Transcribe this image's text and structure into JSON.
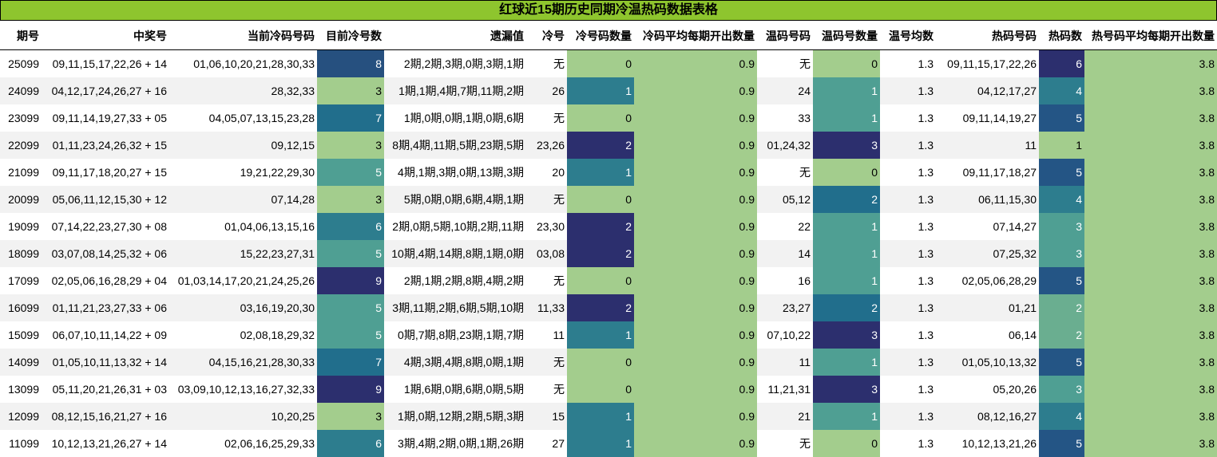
{
  "title": "红球近15期历史同期冷温热码数据表格",
  "headers": [
    "期号",
    "中奖号",
    "当前冷码号码",
    "目前冷号数",
    "遗漏值",
    "冷号",
    "冷号码数量",
    "冷码平均每期开出数量",
    "温码号码",
    "温码号数量",
    "温号均数",
    "热码号码",
    "热码数",
    "热号码平均每期开出数量"
  ],
  "colors": {
    "c1": "#a3cd8d",
    "c2": "#6aae90",
    "c3": "#4f9f93",
    "c4": "#2d7d8e",
    "c5": "#216e8c",
    "c6": "#245585",
    "c7": "#1f6287",
    "c8": "#26507f",
    "c9": "#2c2f6e",
    "zero": "#a3cd8d"
  },
  "rows": [
    {
      "period": "25099",
      "win": "09,11,15,17,22,26 + 14",
      "cold_nums": "01,06,10,20,21,28,30,33",
      "cold_count": "8",
      "omit": "2期,2期,3期,0期,3期,1期",
      "cold": "无",
      "cold_qty": "0",
      "cold_avg": "0.9",
      "warm_nums": "无",
      "warm_qty": "0",
      "warm_avg": "1.3",
      "hot_nums": "09,11,15,17,22,26",
      "hot_qty": "6",
      "hot_avg": "3.8"
    },
    {
      "period": "24099",
      "win": "04,12,17,24,26,27 + 16",
      "cold_nums": "28,32,33",
      "cold_count": "3",
      "omit": "1期,1期,4期,7期,11期,2期",
      "cold": "26",
      "cold_qty": "1",
      "cold_avg": "0.9",
      "warm_nums": "24",
      "warm_qty": "1",
      "warm_avg": "1.3",
      "hot_nums": "04,12,17,27",
      "hot_qty": "4",
      "hot_avg": "3.8"
    },
    {
      "period": "23099",
      "win": "09,11,14,19,27,33 + 05",
      "cold_nums": "04,05,07,13,15,23,28",
      "cold_count": "7",
      "omit": "1期,0期,0期,1期,0期,6期",
      "cold": "无",
      "cold_qty": "0",
      "cold_avg": "0.9",
      "warm_nums": "33",
      "warm_qty": "1",
      "warm_avg": "1.3",
      "hot_nums": "09,11,14,19,27",
      "hot_qty": "5",
      "hot_avg": "3.8"
    },
    {
      "period": "22099",
      "win": "01,11,23,24,26,32 + 15",
      "cold_nums": "09,12,15",
      "cold_count": "3",
      "omit": "8期,4期,11期,5期,23期,5期",
      "cold": "23,26",
      "cold_qty": "2",
      "cold_avg": "0.9",
      "warm_nums": "01,24,32",
      "warm_qty": "3",
      "warm_avg": "1.3",
      "hot_nums": "11",
      "hot_qty": "1",
      "hot_avg": "3.8"
    },
    {
      "period": "21099",
      "win": "09,11,17,18,20,27 + 15",
      "cold_nums": "19,21,22,29,30",
      "cold_count": "5",
      "omit": "4期,1期,3期,0期,13期,3期",
      "cold": "20",
      "cold_qty": "1",
      "cold_avg": "0.9",
      "warm_nums": "无",
      "warm_qty": "0",
      "warm_avg": "1.3",
      "hot_nums": "09,11,17,18,27",
      "hot_qty": "5",
      "hot_avg": "3.8"
    },
    {
      "period": "20099",
      "win": "05,06,11,12,15,30 + 12",
      "cold_nums": "07,14,28",
      "cold_count": "3",
      "omit": "5期,0期,0期,6期,4期,1期",
      "cold": "无",
      "cold_qty": "0",
      "cold_avg": "0.9",
      "warm_nums": "05,12",
      "warm_qty": "2",
      "warm_avg": "1.3",
      "hot_nums": "06,11,15,30",
      "hot_qty": "4",
      "hot_avg": "3.8"
    },
    {
      "period": "19099",
      "win": "07,14,22,23,27,30 + 08",
      "cold_nums": "01,04,06,13,15,16",
      "cold_count": "6",
      "omit": "2期,0期,5期,10期,2期,11期",
      "cold": "23,30",
      "cold_qty": "2",
      "cold_avg": "0.9",
      "warm_nums": "22",
      "warm_qty": "1",
      "warm_avg": "1.3",
      "hot_nums": "07,14,27",
      "hot_qty": "3",
      "hot_avg": "3.8"
    },
    {
      "period": "18099",
      "win": "03,07,08,14,25,32 + 06",
      "cold_nums": "15,22,23,27,31",
      "cold_count": "5",
      "omit": "10期,4期,14期,8期,1期,0期",
      "cold": "03,08",
      "cold_qty": "2",
      "cold_avg": "0.9",
      "warm_nums": "14",
      "warm_qty": "1",
      "warm_avg": "1.3",
      "hot_nums": "07,25,32",
      "hot_qty": "3",
      "hot_avg": "3.8"
    },
    {
      "period": "17099",
      "win": "02,05,06,16,28,29 + 04",
      "cold_nums": "01,03,14,17,20,21,24,25,26",
      "cold_count": "9",
      "omit": "2期,1期,2期,8期,4期,2期",
      "cold": "无",
      "cold_qty": "0",
      "cold_avg": "0.9",
      "warm_nums": "16",
      "warm_qty": "1",
      "warm_avg": "1.3",
      "hot_nums": "02,05,06,28,29",
      "hot_qty": "5",
      "hot_avg": "3.8"
    },
    {
      "period": "16099",
      "win": "01,11,21,23,27,33 + 06",
      "cold_nums": "03,16,19,20,30",
      "cold_count": "5",
      "omit": "3期,11期,2期,6期,5期,10期",
      "cold": "11,33",
      "cold_qty": "2",
      "cold_avg": "0.9",
      "warm_nums": "23,27",
      "warm_qty": "2",
      "warm_avg": "1.3",
      "hot_nums": "01,21",
      "hot_qty": "2",
      "hot_avg": "3.8"
    },
    {
      "period": "15099",
      "win": "06,07,10,11,14,22 + 09",
      "cold_nums": "02,08,18,29,32",
      "cold_count": "5",
      "omit": "0期,7期,8期,23期,1期,7期",
      "cold": "11",
      "cold_qty": "1",
      "cold_avg": "0.9",
      "warm_nums": "07,10,22",
      "warm_qty": "3",
      "warm_avg": "1.3",
      "hot_nums": "06,14",
      "hot_qty": "2",
      "hot_avg": "3.8"
    },
    {
      "period": "14099",
      "win": "01,05,10,11,13,32 + 14",
      "cold_nums": "04,15,16,21,28,30,33",
      "cold_count": "7",
      "omit": "4期,3期,4期,8期,0期,1期",
      "cold": "无",
      "cold_qty": "0",
      "cold_avg": "0.9",
      "warm_nums": "11",
      "warm_qty": "1",
      "warm_avg": "1.3",
      "hot_nums": "01,05,10,13,32",
      "hot_qty": "5",
      "hot_avg": "3.8"
    },
    {
      "period": "13099",
      "win": "05,11,20,21,26,31 + 03",
      "cold_nums": "03,09,10,12,13,16,27,32,33",
      "cold_count": "9",
      "omit": "1期,6期,0期,6期,0期,5期",
      "cold": "无",
      "cold_qty": "0",
      "cold_avg": "0.9",
      "warm_nums": "11,21,31",
      "warm_qty": "3",
      "warm_avg": "1.3",
      "hot_nums": "05,20,26",
      "hot_qty": "3",
      "hot_avg": "3.8"
    },
    {
      "period": "12099",
      "win": "08,12,15,16,21,27 + 16",
      "cold_nums": "10,20,25",
      "cold_count": "3",
      "omit": "1期,0期,12期,2期,5期,3期",
      "cold": "15",
      "cold_qty": "1",
      "cold_avg": "0.9",
      "warm_nums": "21",
      "warm_qty": "1",
      "warm_avg": "1.3",
      "hot_nums": "08,12,16,27",
      "hot_qty": "4",
      "hot_avg": "3.8"
    },
    {
      "period": "11099",
      "win": "10,12,13,21,26,27 + 14",
      "cold_nums": "02,06,16,25,29,33",
      "cold_count": "6",
      "omit": "3期,4期,2期,0期,1期,26期",
      "cold": "27",
      "cold_qty": "1",
      "cold_avg": "0.9",
      "warm_nums": "无",
      "warm_qty": "0",
      "warm_avg": "1.3",
      "hot_nums": "10,12,13,21,26",
      "hot_qty": "5",
      "hot_avg": "3.8"
    }
  ]
}
